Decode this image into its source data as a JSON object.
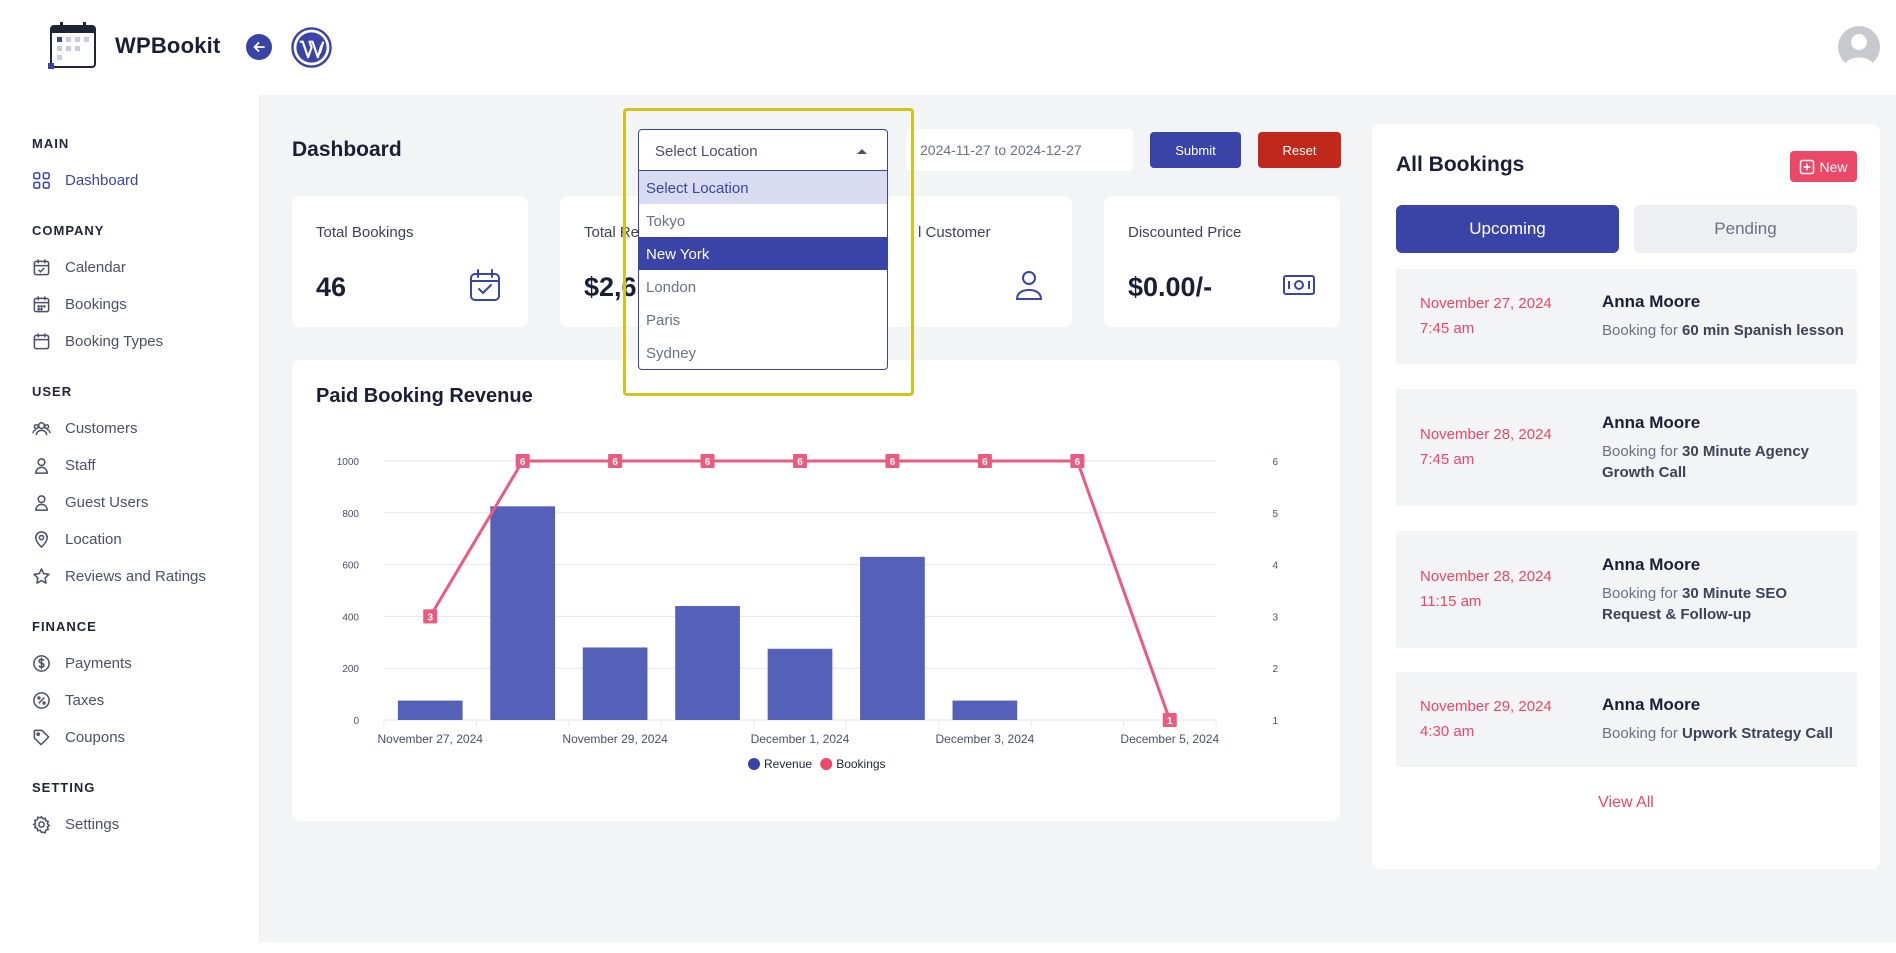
{
  "app": {
    "name": "WPBookit"
  },
  "sidebar": {
    "sections": [
      {
        "title": "MAIN",
        "items": [
          "Dashboard"
        ]
      },
      {
        "title": "COMPANY",
        "items": [
          "Calendar",
          "Bookings",
          "Booking Types"
        ]
      },
      {
        "title": "USER",
        "items": [
          "Customers",
          "Staff",
          "Guest Users",
          "Location",
          "Reviews and Ratings"
        ]
      },
      {
        "title": "FINANCE",
        "items": [
          "Payments",
          "Taxes",
          "Coupons"
        ]
      },
      {
        "title": "SETTING",
        "items": [
          "Settings"
        ]
      }
    ]
  },
  "page": {
    "title": "Dashboard"
  },
  "filters": {
    "location_placeholder": "Select Location",
    "location_options": [
      "Select Location",
      "Tokyo",
      "New York",
      "London",
      "Paris",
      "Sydney"
    ],
    "date_range": "2024-11-27 to 2024-12-27",
    "submit_label": "Submit",
    "reset_label": "Reset"
  },
  "stats": {
    "total_bookings": {
      "label": "Total Bookings",
      "value": "46"
    },
    "total_revenue": {
      "label": "Total Rev",
      "value": "$2,6"
    },
    "total_customer": {
      "label": "l Customer"
    },
    "discounted_price": {
      "label": "Discounted Price",
      "value": "$0.00/-"
    }
  },
  "chart_title": "Paid Booking Revenue",
  "chart_data": {
    "type": "bar",
    "categories": [
      "November 27, 2024",
      "November 28, 2024",
      "November 29, 2024",
      "November 30, 2024",
      "December 1, 2024",
      "December 2, 2024",
      "December 3, 2024",
      "December 4, 2024",
      "December 5, 2024"
    ],
    "tick_labels": [
      "November 27, 2024",
      "November 29, 2024",
      "December 1, 2024",
      "December 3, 2024",
      "December 5, 2024"
    ],
    "series": [
      {
        "name": "Revenue",
        "type": "bar",
        "axis": "left",
        "color": "#5560b8",
        "values": [
          75,
          825,
          280,
          440,
          275,
          630,
          75,
          0,
          0
        ]
      },
      {
        "name": "Bookings",
        "type": "line",
        "axis": "right",
        "color": "#eb5b80",
        "values": [
          3,
          6,
          6,
          6,
          6,
          6,
          6,
          6,
          1
        ]
      }
    ],
    "y_left": {
      "range": [
        0,
        1000
      ],
      "ticks": [
        "0",
        "200",
        "400",
        "600",
        "800",
        "1000"
      ]
    },
    "y_right": {
      "range": [
        1,
        6
      ],
      "ticks": [
        "1",
        "2",
        "3",
        "4",
        "5",
        "6"
      ]
    },
    "legend": "bottom-center",
    "grid": true
  },
  "bookings_panel": {
    "title": "All Bookings",
    "new_label": "New",
    "tabs": [
      "Upcoming",
      "Pending"
    ],
    "items": [
      {
        "date": "November 27, 2024",
        "time": "7:45 am",
        "name": "Anna Moore",
        "prefix": "Booking for ",
        "service": "60 min Spanish lesson"
      },
      {
        "date": "November 28, 2024",
        "time": "7:45 am",
        "name": "Anna Moore",
        "prefix": "Booking for ",
        "service": "30 Minute Agency Growth Call"
      },
      {
        "date": "November 28, 2024",
        "time": "11:15 am",
        "name": "Anna Moore",
        "prefix": "Booking for ",
        "service": "30 Minute SEO Request & Follow-up"
      },
      {
        "date": "November 29, 2024",
        "time": "4:30 am",
        "name": "Anna Moore",
        "prefix": "Booking for ",
        "service": "Upwork Strategy Call"
      }
    ],
    "view_all": "View All"
  },
  "colors": {
    "primary": "#3944a6",
    "accent": "#eb4766",
    "danger": "#c0281c",
    "highlight": "#d4c418"
  }
}
